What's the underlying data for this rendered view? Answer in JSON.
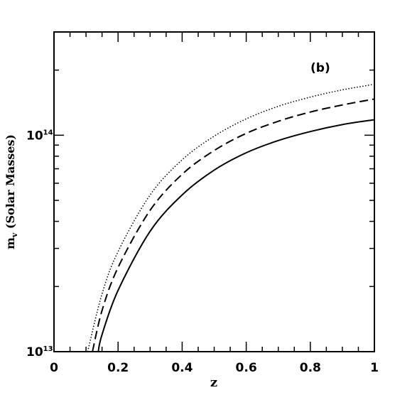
{
  "chart_data": {
    "type": "line",
    "panel_label": "(b)",
    "xlabel": "z",
    "ylabel": {
      "main": "m",
      "subscript": "v",
      "rest": " (Solar Masses)"
    },
    "xlim": [
      0,
      1
    ],
    "ylim": [
      10000000000000.0,
      300000000000000.0
    ],
    "yscale": "log",
    "x_ticks": [
      {
        "value": 0,
        "label": "0"
      },
      {
        "value": 0.2,
        "label": "0.2"
      },
      {
        "value": 0.4,
        "label": "0.4"
      },
      {
        "value": 0.6,
        "label": "0.6"
      },
      {
        "value": 0.8,
        "label": "0.8"
      },
      {
        "value": 1,
        "label": "1"
      }
    ],
    "y_ticks": [
      {
        "value": 10000000000000.0,
        "base": "10",
        "exp": "13"
      },
      {
        "value": 100000000000000.0,
        "base": "10",
        "exp": "14"
      }
    ],
    "series": [
      {
        "style": "dotted",
        "x": [
          0.105,
          0.15,
          0.2,
          0.3,
          0.4,
          0.5,
          0.6,
          0.7,
          0.8,
          0.9,
          1.0
        ],
        "y": [
          10000000000000.0,
          18500000000000.0,
          29000000000000.0,
          53000000000000.0,
          77000000000000.0,
          99000000000000.0,
          119000000000000.0,
          136000000000000.0,
          150000000000000.0,
          162000000000000.0,
          172000000000000.0
        ]
      },
      {
        "style": "dashed",
        "x": [
          0.12,
          0.15,
          0.2,
          0.3,
          0.4,
          0.5,
          0.6,
          0.7,
          0.8,
          0.9,
          1.0
        ],
        "y": [
          10000000000000.0,
          15500000000000.0,
          24500000000000.0,
          45000000000000.0,
          66000000000000.0,
          85000000000000.0,
          102000000000000.0,
          116000000000000.0,
          128000000000000.0,
          138000000000000.0,
          147000000000000.0
        ]
      },
      {
        "style": "solid",
        "x": [
          0.138,
          0.15,
          0.2,
          0.3,
          0.4,
          0.5,
          0.6,
          0.7,
          0.8,
          0.9,
          1.0
        ],
        "y": [
          10000000000000.0,
          12000000000000.0,
          19200000000000.0,
          36000000000000.0,
          53000000000000.0,
          69000000000000.0,
          83000000000000.0,
          94500000000000.0,
          104000000000000.0,
          112000000000000.0,
          118000000000000.0
        ]
      }
    ]
  }
}
